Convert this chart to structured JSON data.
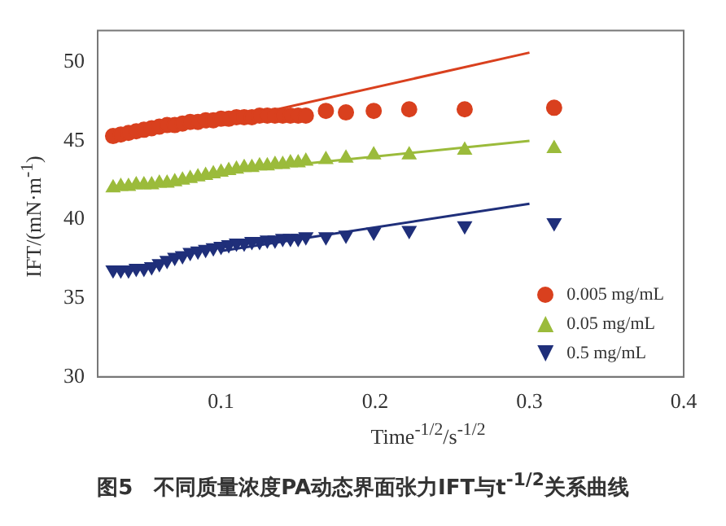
{
  "chart_data": {
    "type": "scatter",
    "xlabel": "Time$^{-1/2}$/s$^{-1/2}$",
    "ylabel": "IFT/(mN·m$^{-1}$)",
    "annotations": [
      "图5　不同质量浓度PA动态界面张力IFT与t$^{-1/2}$关系曲线"
    ],
    "xlim": [
      0.02,
      0.4
    ],
    "xticks": [
      0.1,
      0.2,
      0.3,
      0.4
    ],
    "ylim": [
      30,
      52
    ],
    "yticks": [
      30,
      35,
      40,
      45,
      50
    ],
    "legend": "bottom right",
    "grid": false,
    "series": [
      {
        "name": "0.005 mg/mL",
        "color": "#d9401e",
        "marker": "circle",
        "x": [
          0.03,
          0.035,
          0.04,
          0.045,
          0.05,
          0.055,
          0.06,
          0.065,
          0.07,
          0.075,
          0.08,
          0.085,
          0.09,
          0.095,
          0.1,
          0.105,
          0.11,
          0.115,
          0.12,
          0.125,
          0.13,
          0.135,
          0.14,
          0.145,
          0.15,
          0.155,
          0.168,
          0.181,
          0.199,
          0.222,
          0.258,
          0.316
        ],
        "values": [
          45.3,
          45.4,
          45.5,
          45.6,
          45.7,
          45.8,
          45.9,
          46.0,
          46.0,
          46.1,
          46.2,
          46.2,
          46.3,
          46.3,
          46.4,
          46.4,
          46.5,
          46.5,
          46.5,
          46.6,
          46.6,
          46.6,
          46.6,
          46.6,
          46.6,
          46.6,
          46.9,
          46.8,
          46.9,
          47.0,
          47.0,
          47.1
        ]
      },
      {
        "name": "0.05 mg/mL",
        "color": "#9bbb3b",
        "marker": "triangle",
        "x": [
          0.03,
          0.035,
          0.04,
          0.045,
          0.05,
          0.055,
          0.06,
          0.065,
          0.07,
          0.075,
          0.08,
          0.085,
          0.09,
          0.095,
          0.1,
          0.105,
          0.11,
          0.115,
          0.12,
          0.125,
          0.13,
          0.135,
          0.14,
          0.145,
          0.15,
          0.155,
          0.168,
          0.181,
          0.199,
          0.222,
          0.258,
          0.316
        ],
        "values": [
          42.0,
          42.1,
          42.1,
          42.2,
          42.2,
          42.2,
          42.3,
          42.3,
          42.4,
          42.5,
          42.6,
          42.7,
          42.8,
          42.9,
          43.0,
          43.1,
          43.2,
          43.3,
          43.3,
          43.4,
          43.4,
          43.5,
          43.5,
          43.6,
          43.6,
          43.7,
          43.8,
          43.9,
          44.1,
          44.1,
          44.4,
          44.5
        ]
      },
      {
        "name": "0.5 mg/mL",
        "color": "#1f2f7a",
        "marker": "triangle-down",
        "x": [
          0.03,
          0.035,
          0.04,
          0.045,
          0.05,
          0.055,
          0.06,
          0.065,
          0.07,
          0.075,
          0.08,
          0.085,
          0.09,
          0.095,
          0.1,
          0.105,
          0.11,
          0.115,
          0.12,
          0.125,
          0.13,
          0.135,
          0.14,
          0.145,
          0.15,
          0.155,
          0.168,
          0.181,
          0.199,
          0.222,
          0.258,
          0.316
        ],
        "values": [
          36.8,
          36.8,
          36.8,
          36.9,
          36.9,
          37.0,
          37.2,
          37.4,
          37.6,
          37.7,
          37.9,
          38.0,
          38.1,
          38.2,
          38.3,
          38.4,
          38.5,
          38.5,
          38.6,
          38.6,
          38.7,
          38.7,
          38.8,
          38.8,
          38.8,
          38.9,
          38.9,
          39.0,
          39.2,
          39.3,
          39.6,
          39.8
        ]
      },
      {
        "type": "line",
        "color": "#d9401e",
        "x": [
          0.1,
          0.3
        ],
        "values": [
          46.2,
          50.6
        ]
      },
      {
        "type": "line",
        "color": "#9bbb3b",
        "x": [
          0.1,
          0.3
        ],
        "values": [
          43.0,
          45.0
        ]
      },
      {
        "type": "line",
        "color": "#1f2f7a",
        "x": [
          0.1,
          0.3
        ],
        "values": [
          38.0,
          41.0
        ]
      }
    ]
  }
}
